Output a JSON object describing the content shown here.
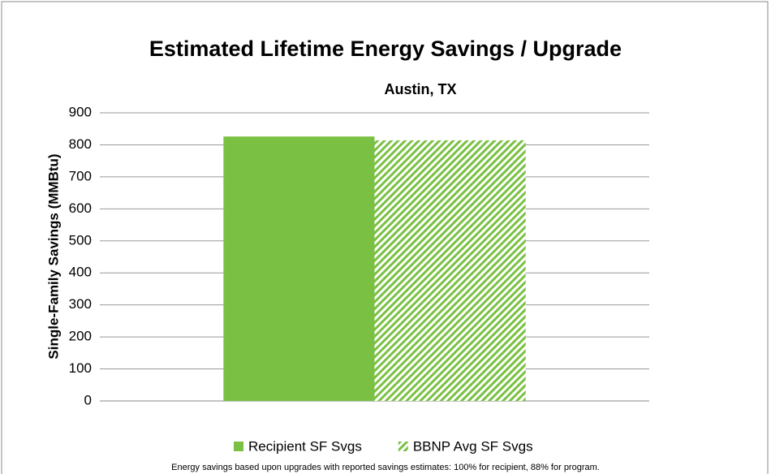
{
  "chart_data": {
    "type": "bar",
    "title": "Estimated Lifetime Energy Savings / Upgrade",
    "subtitle": "Austin, TX",
    "y_label": "Single-Family Savings (MMBtu)",
    "footnote": "Energy savings based upon upgrades with reported savings estimates: 100% for recipient, 88% for program.",
    "categories": [
      null
    ],
    "series": [
      {
        "name": "Recipient SF Svgs",
        "color": "#7ac143",
        "pattern": "solid",
        "values": [
          826
        ]
      },
      {
        "name": "BBNP Avg SF Svgs",
        "color": "#7ac143",
        "pattern": "hatch",
        "values": [
          814
        ]
      }
    ],
    "ylim": [
      0,
      900
    ],
    "yticks": [
      0,
      100,
      200,
      300,
      400,
      500,
      600,
      700,
      800,
      900
    ],
    "grid": true,
    "legend": "bottom"
  }
}
